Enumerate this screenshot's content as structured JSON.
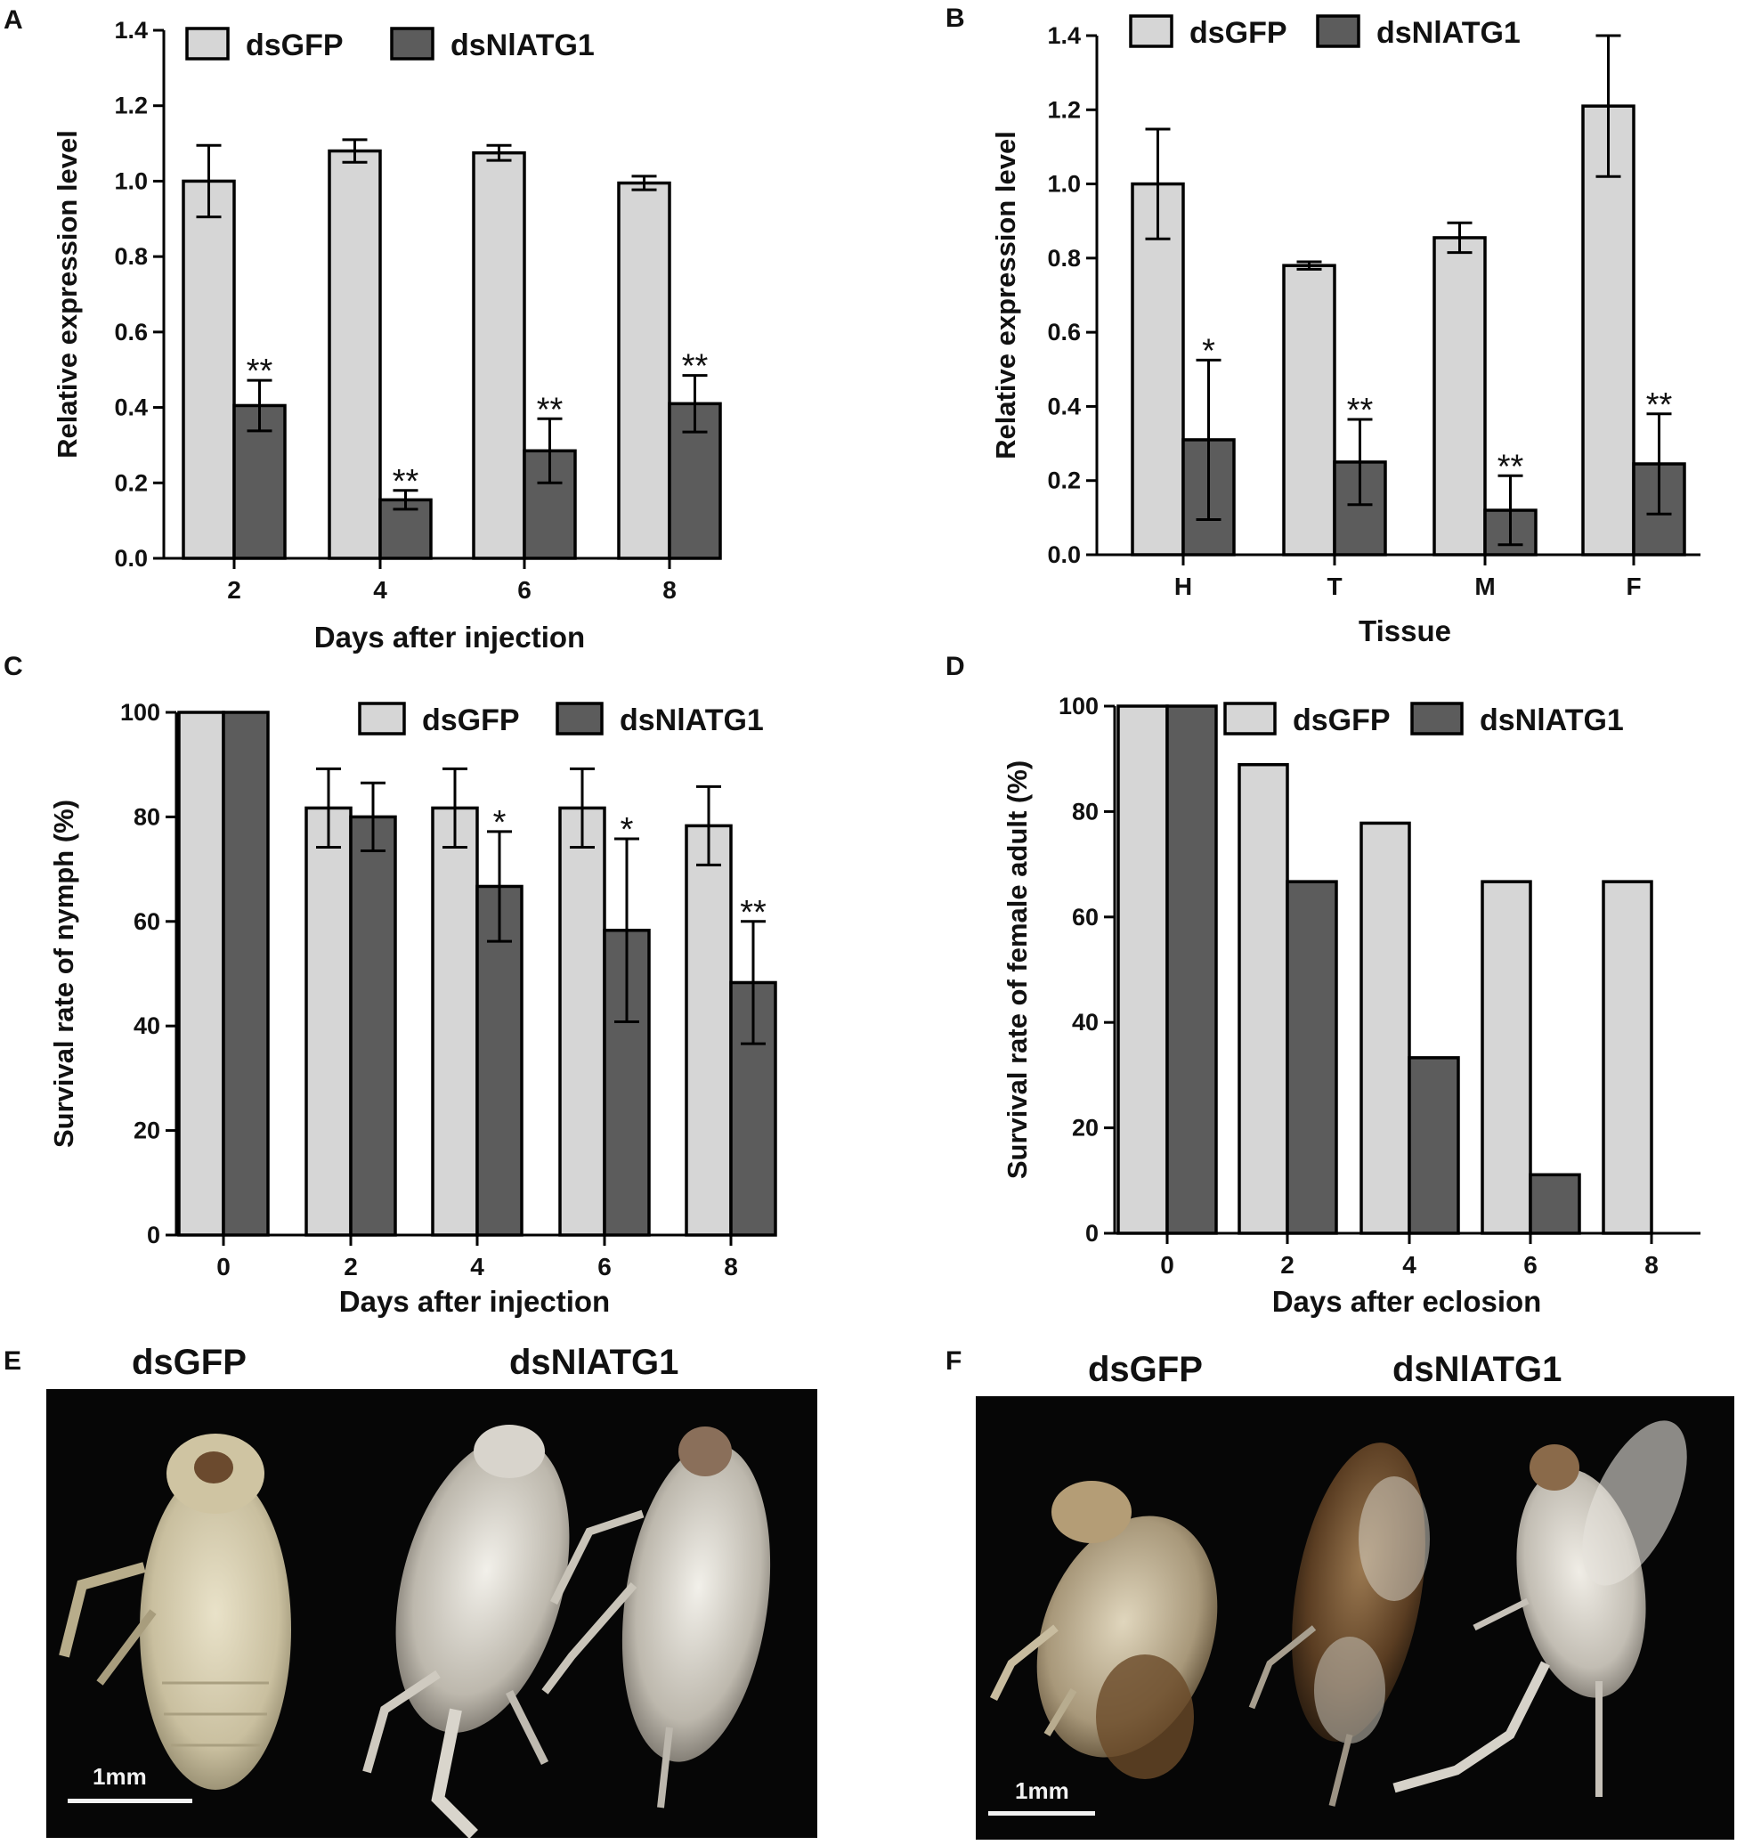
{
  "colors": {
    "dsGFP": "#d6d6d6",
    "dsNlATG1": "#5c5c5c",
    "stroke": "#000000"
  },
  "panels": {
    "A": "A",
    "B": "B",
    "C": "C",
    "D": "D",
    "E": "E",
    "F": "F"
  },
  "chart_data": [
    {
      "panel": "A",
      "type": "bar",
      "xlabel": "Days after injection",
      "ylabel": "Relative expression level",
      "categories": [
        "2",
        "4",
        "6",
        "8"
      ],
      "ylim": [
        0,
        1.4
      ],
      "yticks": [
        "0.0",
        "0.2",
        "0.4",
        "0.6",
        "0.8",
        "1.0",
        "1.2",
        "1.4"
      ],
      "legend": "top",
      "series": [
        {
          "name": "dsGFP",
          "values": [
            1.0,
            1.08,
            1.075,
            0.995
          ],
          "errors": [
            0.095,
            0.03,
            0.02,
            0.018
          ],
          "annotations": [
            "",
            "",
            "",
            ""
          ]
        },
        {
          "name": "dsNlATG1",
          "values": [
            0.405,
            0.155,
            0.285,
            0.41
          ],
          "errors": [
            0.067,
            0.025,
            0.085,
            0.075
          ],
          "annotations": [
            "**",
            "**",
            "**",
            "**"
          ]
        }
      ]
    },
    {
      "panel": "B",
      "type": "bar",
      "xlabel": "Tissue",
      "ylabel": "Relative expression level",
      "categories": [
        "H",
        "T",
        "M",
        "F"
      ],
      "ylim": [
        0,
        1.4
      ],
      "yticks": [
        "0.0",
        "0.2",
        "0.4",
        "0.6",
        "0.8",
        "1.0",
        "1.2",
        "1.4"
      ],
      "legend": "top",
      "series": [
        {
          "name": "dsGFP",
          "values": [
            1.0,
            0.78,
            0.855,
            1.21
          ],
          "errors": [
            0.148,
            0.01,
            0.04,
            0.19
          ],
          "annotations": [
            "",
            "",
            "",
            ""
          ]
        },
        {
          "name": "dsNlATG1",
          "values": [
            0.31,
            0.25,
            0.12,
            0.245
          ],
          "errors": [
            0.215,
            0.115,
            0.093,
            0.135
          ],
          "annotations": [
            "*",
            "**",
            "**",
            "**"
          ]
        }
      ]
    },
    {
      "panel": "C",
      "type": "bar",
      "xlabel": "Days after injection",
      "ylabel": "Survival rate of nymph  (%)",
      "categories": [
        "0",
        "2",
        "4",
        "6",
        "8"
      ],
      "ylim": [
        0,
        100
      ],
      "yticks": [
        "0",
        "20",
        "40",
        "60",
        "80",
        "100"
      ],
      "legend": "top-right",
      "series": [
        {
          "name": "dsGFP",
          "values": [
            100,
            81.7,
            81.7,
            81.7,
            78.3
          ],
          "errors": [
            0,
            7.5,
            7.5,
            7.5,
            7.5
          ],
          "annotations": [
            "",
            "",
            "",
            "",
            ""
          ]
        },
        {
          "name": "dsNlATG1",
          "values": [
            100,
            80,
            66.7,
            58.3,
            48.3
          ],
          "errors": [
            0,
            6.5,
            10.5,
            17.5,
            11.7
          ],
          "annotations": [
            "",
            "",
            "*",
            "*",
            "**"
          ]
        }
      ]
    },
    {
      "panel": "D",
      "type": "bar",
      "xlabel": "Days after eclosion",
      "ylabel": "Survival rate of female adult (%)",
      "categories": [
        "0",
        "2",
        "4",
        "6",
        "8"
      ],
      "ylim": [
        0,
        100
      ],
      "yticks": [
        "0",
        "20",
        "40",
        "60",
        "80",
        "100"
      ],
      "legend": "top-right",
      "series": [
        {
          "name": "dsGFP",
          "values": [
            100,
            88.9,
            77.8,
            66.7,
            66.7
          ],
          "errors": [
            0,
            0,
            0,
            0,
            0
          ],
          "annotations": [
            "",
            "",
            "",
            "",
            ""
          ]
        },
        {
          "name": "dsNlATG1",
          "values": [
            100,
            66.7,
            33.3,
            11.1,
            0
          ],
          "errors": [
            0,
            0,
            0,
            0,
            0
          ],
          "annotations": [
            "",
            "",
            "",
            "",
            ""
          ]
        }
      ]
    }
  ],
  "photos": {
    "E": {
      "labels": [
        "dsGFP",
        "dsNlATG1"
      ],
      "scale": "1mm"
    },
    "F": {
      "labels": [
        "dsGFP",
        "dsNlATG1"
      ],
      "scale": "1mm"
    }
  }
}
